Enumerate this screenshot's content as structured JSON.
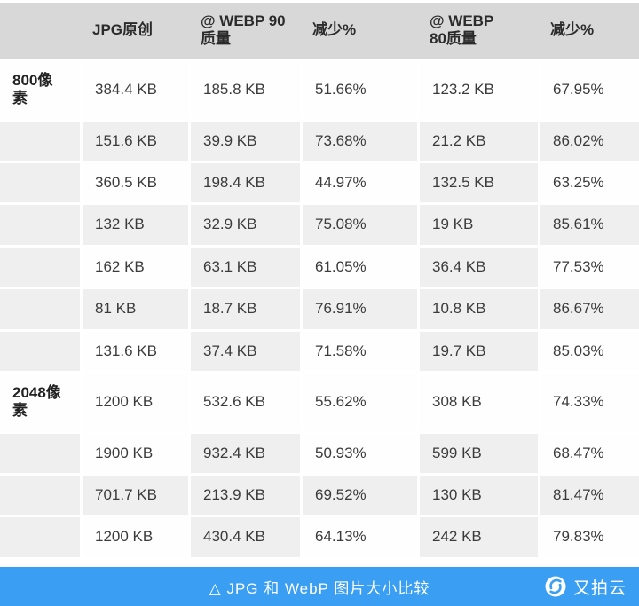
{
  "table": {
    "headers": [
      "",
      "JPG原创",
      "@ WEBP 90\n质量",
      "减少%",
      "@ WEBP\n80质量",
      "减少%"
    ],
    "rows": [
      {
        "label": "800像素",
        "style": "white",
        "cells": [
          "384.4 KB",
          "185.8 KB",
          "51.66%",
          "123.2 KB",
          "67.95%"
        ]
      },
      {
        "label": "",
        "style": "gray",
        "cells": [
          "151.6 KB",
          "39.9 KB",
          "73.68%",
          "21.2 KB",
          "86.02%"
        ]
      },
      {
        "label": "",
        "style": "checker",
        "cells": [
          "360.5 KB",
          "198.4 KB",
          "44.97%",
          "132.5 KB",
          "63.25%"
        ]
      },
      {
        "label": "",
        "style": "gray",
        "cells": [
          "132 KB",
          "32.9 KB",
          "75.08%",
          "19 KB",
          "85.61%"
        ]
      },
      {
        "label": "",
        "style": "checker",
        "cells": [
          "162 KB",
          "63.1 KB",
          "61.05%",
          "36.4 KB",
          "77.53%"
        ]
      },
      {
        "label": "",
        "style": "gray",
        "cells": [
          "81 KB",
          "18.7 KB",
          "76.91%",
          "10.8 KB",
          "86.67%"
        ]
      },
      {
        "label": "",
        "style": "checker",
        "cells": [
          "131.6 KB",
          "37.4 KB",
          "71.58%",
          "19.7 KB",
          "85.03%"
        ]
      },
      {
        "label": "2048像素",
        "style": "white",
        "cells": [
          "1200 KB",
          "532.6 KB",
          "55.62%",
          "308 KB",
          "74.33%"
        ]
      },
      {
        "label": "",
        "style": "checker",
        "cells": [
          "1900 KB",
          "932.4 KB",
          "50.93%",
          "599 KB",
          "68.47%"
        ]
      },
      {
        "label": "",
        "style": "gray",
        "cells": [
          "701.7 KB",
          "213.9 KB",
          "69.52%",
          "130 KB",
          "81.47%"
        ]
      },
      {
        "label": "",
        "style": "checker",
        "cells": [
          "1200 KB",
          "430.4 KB",
          "64.13%",
          "242 KB",
          "79.83%"
        ]
      }
    ]
  },
  "footer": {
    "caption": "△ JPG 和 WebP 图片大小比较",
    "brand": "又拍云",
    "bar_color": "#3a9ff2"
  },
  "colors": {
    "header_bg": "#d8d8d8",
    "stripe_bg": "#efefef",
    "accent_blue": "#3a9ff2",
    "text": "#3b3b3b"
  },
  "chart_data": {
    "type": "table",
    "title": "△ JPG 和 WebP 图片大小比较",
    "columns": [
      "",
      "JPG原创",
      "@ WEBP 90 质量",
      "减少%",
      "@ WEBP 80质量",
      "减少%"
    ],
    "rows": [
      [
        "800像素",
        "384.4 KB",
        "185.8 KB",
        "51.66%",
        "123.2 KB",
        "67.95%"
      ],
      [
        "",
        "151.6 KB",
        "39.9 KB",
        "73.68%",
        "21.2 KB",
        "86.02%"
      ],
      [
        "",
        "360.5 KB",
        "198.4 KB",
        "44.97%",
        "132.5 KB",
        "63.25%"
      ],
      [
        "",
        "132 KB",
        "32.9 KB",
        "75.08%",
        "19 KB",
        "85.61%"
      ],
      [
        "",
        "162 KB",
        "63.1 KB",
        "61.05%",
        "36.4 KB",
        "77.53%"
      ],
      [
        "",
        "81 KB",
        "18.7 KB",
        "76.91%",
        "10.8 KB",
        "86.67%"
      ],
      [
        "",
        "131.6 KB",
        "37.4 KB",
        "71.58%",
        "19.7 KB",
        "85.03%"
      ],
      [
        "2048像素",
        "1200 KB",
        "532.6 KB",
        "55.62%",
        "308 KB",
        "74.33%"
      ],
      [
        "",
        "1900 KB",
        "932.4 KB",
        "50.93%",
        "599 KB",
        "68.47%"
      ],
      [
        "",
        "701.7 KB",
        "213.9 KB",
        "69.52%",
        "130 KB",
        "81.47%"
      ],
      [
        "",
        "1200 KB",
        "430.4 KB",
        "64.13%",
        "242 KB",
        "79.83%"
      ]
    ]
  }
}
